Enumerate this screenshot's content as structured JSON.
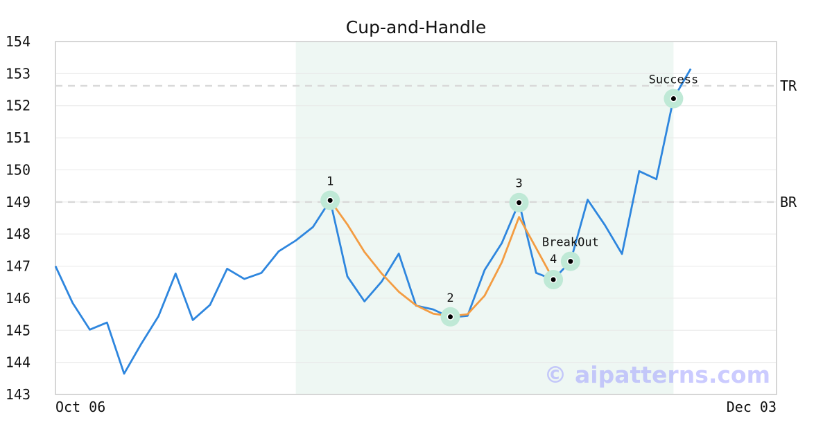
{
  "chart_data": {
    "type": "line",
    "title": "Cup-and-Handle",
    "xlabel": "",
    "ylabel": "",
    "ylim": [
      143,
      154
    ],
    "yticks": [
      143,
      144,
      145,
      146,
      147,
      148,
      149,
      150,
      151,
      152,
      153,
      154
    ],
    "x_tick_labels": [
      {
        "index": 0,
        "label": "Oct 06"
      },
      {
        "index": 41,
        "label": "Dec 03"
      }
    ],
    "grid": "horizontal",
    "colors": {
      "price": "#2e86de",
      "cup": "#f39c42",
      "highlight": "#eef7f3",
      "marker_halo": "#bfe9d6",
      "level_line": "#d9d9d9",
      "axes": "#d6d6d6"
    },
    "highlight_range": [
      14,
      36
    ],
    "series": [
      {
        "role": "price",
        "values": [
          147.0,
          145.85,
          145.02,
          145.24,
          143.65,
          144.58,
          145.44,
          146.77,
          145.32,
          145.79,
          146.92,
          146.6,
          146.79,
          147.46,
          147.8,
          148.22,
          149.05,
          146.68,
          145.9,
          146.52,
          147.39,
          145.77,
          145.65,
          145.4,
          145.45,
          146.88,
          147.72,
          148.98,
          146.79,
          146.58,
          147.15,
          149.07,
          148.28,
          147.38,
          149.96,
          149.71,
          152.22,
          153.15
        ]
      },
      {
        "role": "cup",
        "x": [
          16,
          17,
          18,
          19,
          20,
          21,
          22,
          23,
          24,
          25,
          26,
          27,
          28,
          29
        ],
        "values": [
          149.05,
          148.3,
          147.44,
          146.77,
          146.2,
          145.78,
          145.52,
          145.44,
          145.5,
          146.08,
          147.12,
          148.53,
          147.56,
          146.58
        ]
      }
    ],
    "levels": [
      {
        "value": 152.62,
        "label": "TR"
      },
      {
        "value": 149.0,
        "label": "BR"
      }
    ],
    "points": [
      {
        "x": 16,
        "y": 149.05,
        "label": "1"
      },
      {
        "x": 23,
        "y": 145.42,
        "label": "2"
      },
      {
        "x": 27,
        "y": 148.98,
        "label": "3"
      },
      {
        "x": 29,
        "y": 146.58,
        "label": "4"
      },
      {
        "x": 30,
        "y": 147.15,
        "label": "BreakOut"
      },
      {
        "x": 36,
        "y": 152.22,
        "label": "Success"
      }
    ],
    "watermark": "© aipatterns.com"
  }
}
